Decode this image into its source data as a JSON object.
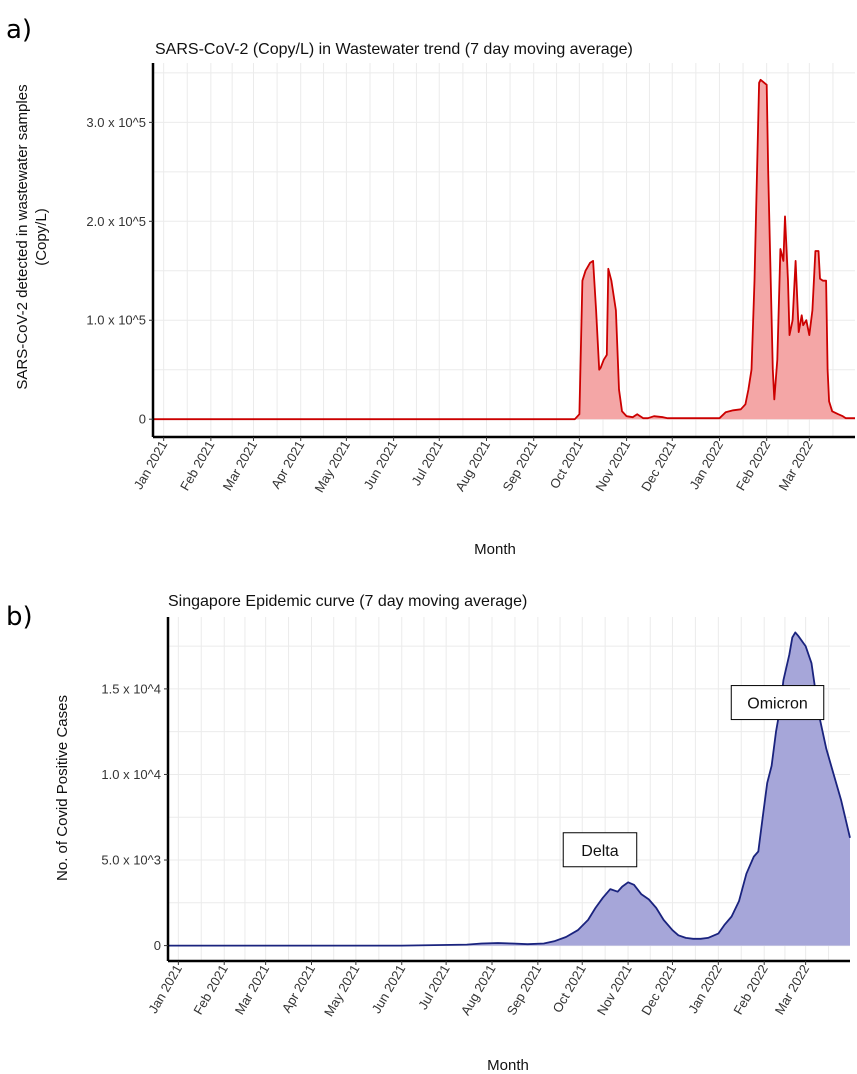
{
  "chart_data": [
    {
      "panel": "a)",
      "type": "area",
      "title": "SARS-CoV-2 (Copy/L) in Wastewater trend (7 day moving average)",
      "xlabel": "Month",
      "ylabel": [
        "SARS-CoV-2 detected in wastewater samples",
        "(Copy/L)"
      ],
      "x_ticks": [
        "Jan 2021",
        "Feb 2021",
        "Mar 2021",
        "Apr 2021",
        "May 2021",
        "Jun 2021",
        "Jul 2021",
        "Aug 2021",
        "Sep 2021",
        "Oct 2021",
        "Nov 2021",
        "Dec 2021",
        "Jan 2022",
        "Feb 2022",
        "Mar 2022"
      ],
      "y_ticks": [
        {
          "value": 0,
          "label": "0"
        },
        {
          "value": 100000,
          "label": "1.0 x 10^5"
        },
        {
          "value": 200000,
          "label": "2.0 x 10^5"
        },
        {
          "value": 300000,
          "label": "3.0 x 10^5"
        }
      ],
      "x_range": [
        "2020-12-25",
        "2022-03-31"
      ],
      "ylim": [
        -18000,
        360000
      ],
      "grid": true,
      "color": "#cc0000",
      "fill": "#f4a6a6",
      "series": [
        {
          "x": [
            "2020-12-25",
            "2021-09-20",
            "2021-09-28",
            "2021-10-01",
            "2021-10-03",
            "2021-10-05",
            "2021-10-08",
            "2021-10-10",
            "2021-10-12",
            "2021-10-14",
            "2021-10-15",
            "2021-10-17",
            "2021-10-19",
            "2021-10-20",
            "2021-10-22",
            "2021-10-25",
            "2021-10-27",
            "2021-10-29",
            "2021-11-01",
            "2021-11-05",
            "2021-11-08",
            "2021-11-12",
            "2021-11-15",
            "2021-11-19",
            "2021-11-25",
            "2021-11-28",
            "2021-12-01",
            "2021-12-05",
            "2021-12-10",
            "2021-12-20",
            "2022-01-01",
            "2022-01-05",
            "2022-01-10",
            "2022-01-15",
            "2022-01-18",
            "2022-01-20",
            "2022-01-22",
            "2022-01-24",
            "2022-01-27",
            "2022-01-28",
            "2022-02-01",
            "2022-02-02",
            "2022-02-05",
            "2022-02-06",
            "2022-02-08",
            "2022-02-10",
            "2022-02-12",
            "2022-02-13",
            "2022-02-15",
            "2022-02-16",
            "2022-02-18",
            "2022-02-20",
            "2022-02-22",
            "2022-02-24",
            "2022-02-25",
            "2022-02-27",
            "2022-03-01",
            "2022-03-03",
            "2022-03-05",
            "2022-03-07",
            "2022-03-08",
            "2022-03-10",
            "2022-03-12",
            "2022-03-13",
            "2022-03-14",
            "2022-03-16",
            "2022-03-20",
            "2022-03-23",
            "2022-03-25",
            "2022-03-28",
            "2022-03-31"
          ],
          "y": [
            0,
            0,
            0,
            5000,
            140000,
            150000,
            158000,
            160000,
            110000,
            50000,
            52000,
            60000,
            65000,
            152000,
            140000,
            110000,
            30000,
            8000,
            3000,
            2000,
            5000,
            1000,
            1000,
            3000,
            2000,
            1000,
            1000,
            1000,
            1000,
            1000,
            1000,
            7000,
            9000,
            10000,
            15000,
            30000,
            50000,
            140000,
            340000,
            343000,
            338000,
            250000,
            50000,
            20000,
            60000,
            172000,
            160000,
            205000,
            140000,
            85000,
            100000,
            160000,
            88000,
            105000,
            95000,
            100000,
            85000,
            110000,
            170000,
            170000,
            142000,
            140000,
            140000,
            50000,
            18000,
            8000,
            5000,
            3000,
            1000,
            1000,
            1000
          ]
        }
      ]
    },
    {
      "panel": "b)",
      "type": "area",
      "title": "Singapore Epidemic curve (7 day moving average)",
      "xlabel": "Month",
      "ylabel": [
        "No. of Covid Positive Cases"
      ],
      "x_ticks": [
        "Jan 2021",
        "Feb 2021",
        "Mar 2021",
        "Apr 2021",
        "May 2021",
        "Jun 2021",
        "Jul 2021",
        "Aug 2021",
        "Sep 2021",
        "Oct 2021",
        "Nov 2021",
        "Dec 2021",
        "Jan 2022",
        "Feb 2022",
        "Mar 2022"
      ],
      "y_ticks": [
        {
          "value": 0,
          "label": "0"
        },
        {
          "value": 5000,
          "label": "5.0 x 10^3"
        },
        {
          "value": 10000,
          "label": "1.0 x 10^4"
        },
        {
          "value": 15000,
          "label": "1.5 x 10^4"
        }
      ],
      "x_range": [
        "2020-12-25",
        "2022-03-31"
      ],
      "ylim": [
        -900,
        19200
      ],
      "grid": true,
      "color": "#1a237e",
      "fill": "#a6a6d9",
      "annotations": [
        {
          "text": "Delta",
          "x": "2021-10-13",
          "y": 5600
        },
        {
          "text": "Omicron",
          "x": "2022-02-10",
          "y": 14200
        }
      ],
      "series": [
        {
          "x": [
            "2020-12-25",
            "2021-06-01",
            "2021-07-15",
            "2021-07-25",
            "2021-08-05",
            "2021-08-15",
            "2021-08-25",
            "2021-09-05",
            "2021-09-12",
            "2021-09-20",
            "2021-09-28",
            "2021-10-05",
            "2021-10-10",
            "2021-10-15",
            "2021-10-20",
            "2021-10-25",
            "2021-10-28",
            "2021-11-01",
            "2021-11-05",
            "2021-11-10",
            "2021-11-15",
            "2021-11-20",
            "2021-11-25",
            "2021-12-01",
            "2021-12-05",
            "2021-12-10",
            "2021-12-15",
            "2021-12-20",
            "2021-12-25",
            "2022-01-01",
            "2022-01-05",
            "2022-01-10",
            "2022-01-15",
            "2022-01-20",
            "2022-01-25",
            "2022-01-28",
            "2022-01-31",
            "2022-02-03",
            "2022-02-06",
            "2022-02-09",
            "2022-02-12",
            "2022-02-14",
            "2022-02-18",
            "2022-02-20",
            "2022-02-22",
            "2022-02-24",
            "2022-03-01",
            "2022-03-05",
            "2022-03-10",
            "2022-03-15",
            "2022-03-20",
            "2022-03-25",
            "2022-03-31"
          ],
          "y": [
            0,
            0,
            60,
            120,
            150,
            120,
            80,
            120,
            250,
            500,
            900,
            1500,
            2200,
            2800,
            3300,
            3150,
            3450,
            3700,
            3550,
            3000,
            2700,
            2200,
            1500,
            900,
            600,
            450,
            400,
            400,
            450,
            700,
            1200,
            1700,
            2600,
            4200,
            5200,
            5500,
            7500,
            9500,
            10500,
            12500,
            14000,
            15500,
            17000,
            18000,
            18300,
            18100,
            17500,
            16500,
            13500,
            11500,
            10000,
            8500,
            6300
          ]
        }
      ]
    }
  ]
}
